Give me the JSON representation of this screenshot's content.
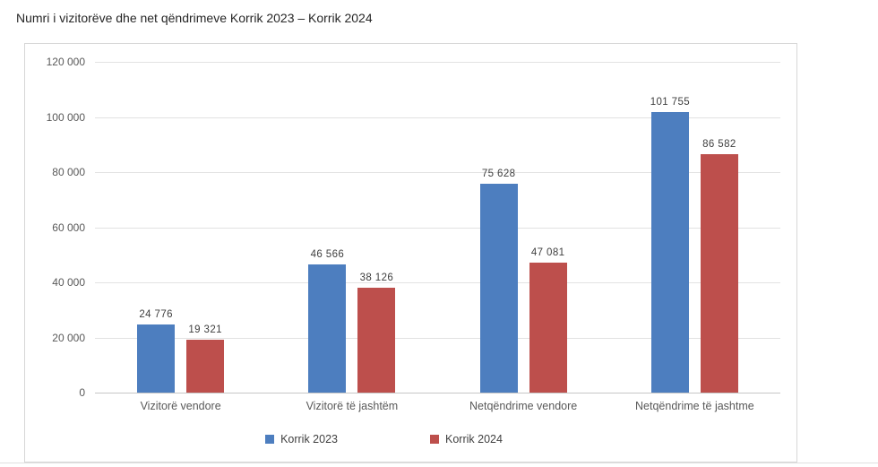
{
  "page": {
    "title": "Numri i vizitorëve dhe net qëndrimeve Korrik 2023 – Korrik 2024"
  },
  "chart_data": {
    "type": "bar",
    "title": "Numri i vizitorëve dhe net qëndrimeve Korrik 2023 – Korrik 2024",
    "categories": [
      "Vizitorë vendore",
      "Vizitorë të jashtëm",
      "Netqëndrime vendore",
      "Netqëndrime të jashtme"
    ],
    "series": [
      {
        "name": "Korrik 2023",
        "color": "#4d7ebf",
        "values": [
          24776,
          46566,
          75628,
          101755
        ],
        "labels": [
          "24 776",
          "46 566",
          "75 628",
          "101 755"
        ]
      },
      {
        "name": "Korrik 2024",
        "color": "#bd4f4c",
        "values": [
          19321,
          38126,
          47081,
          86582
        ],
        "labels": [
          "19 321",
          "38 126",
          "47 081",
          "86 582"
        ]
      }
    ],
    "xlabel": "",
    "ylabel": "",
    "ylim": [
      0,
      120000
    ],
    "ytick_step": 20000,
    "ytick_labels": [
      "0",
      "20 000",
      "40 000",
      "60 000",
      "80 000",
      "100 000",
      "120 000"
    ],
    "grid": true,
    "legend_position": "bottom"
  }
}
